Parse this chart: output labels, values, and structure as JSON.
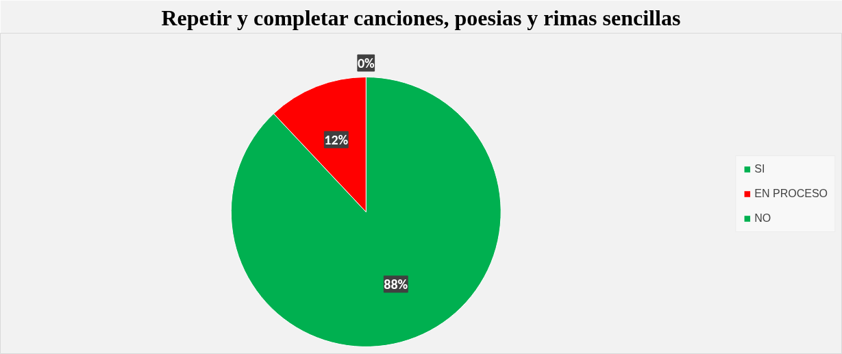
{
  "chart_data": {
    "type": "pie",
    "title": "Repetir y completar canciones, poesias y rimas sencillas",
    "categories": [
      "SI",
      "EN PROCESO",
      "NO"
    ],
    "values": [
      88,
      12,
      0
    ],
    "colors": [
      "#00b050",
      "#ff0000",
      "#00b050"
    ],
    "value_labels": [
      "88%",
      "12%",
      "0%"
    ],
    "legend": "right"
  }
}
